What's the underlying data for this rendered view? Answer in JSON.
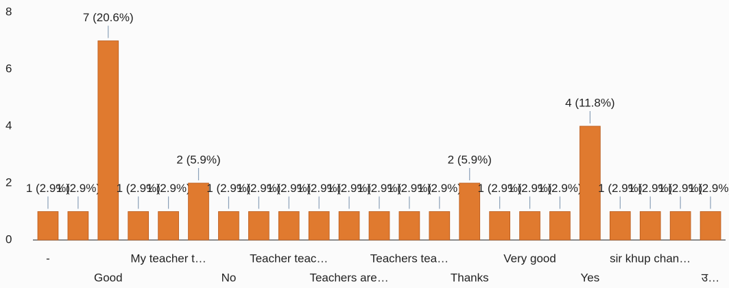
{
  "chart_data": {
    "type": "bar",
    "categories": [
      "-",
      null,
      "Good",
      null,
      "My teacher t…",
      null,
      "No",
      null,
      "Teacher teac…",
      null,
      "Teachers are…",
      null,
      "Teachers tea…",
      null,
      "Thanks",
      null,
      "Very good",
      null,
      "Yes",
      null,
      "sir khup chan…",
      null,
      "उ…"
    ],
    "values": [
      1,
      1,
      7,
      1,
      1,
      2,
      1,
      1,
      1,
      1,
      1,
      1,
      1,
      1,
      2,
      1,
      1,
      1,
      4,
      1,
      1,
      1,
      1
    ],
    "value_labels": [
      "1 (2.9%)",
      "1 (2.9%)",
      "7 (20.6%)",
      "1 (2.9%)",
      "1 (2.9%)",
      "2 (5.9%)",
      "1 (2.9%)",
      "1 (2.9%)",
      "1 (2.9%)",
      "1 (2.9%)",
      "1 (2.9%)",
      "1 (2.9%)",
      "1 (2.9%)",
      "1 (2.9%)",
      "2 (5.9%)",
      "1 (2.9%)",
      "1 (2.9%)",
      "1 (2.9%)",
      "4 (11.8%)",
      "1 (2.9%)",
      "1 (2.9%)",
      "1 (2.9%)",
      "1 (2.9%)"
    ],
    "color": "#e07a2f",
    "ylim": [
      0,
      8
    ],
    "yticks": [
      0,
      2,
      4,
      6,
      8
    ],
    "grid": false
  }
}
